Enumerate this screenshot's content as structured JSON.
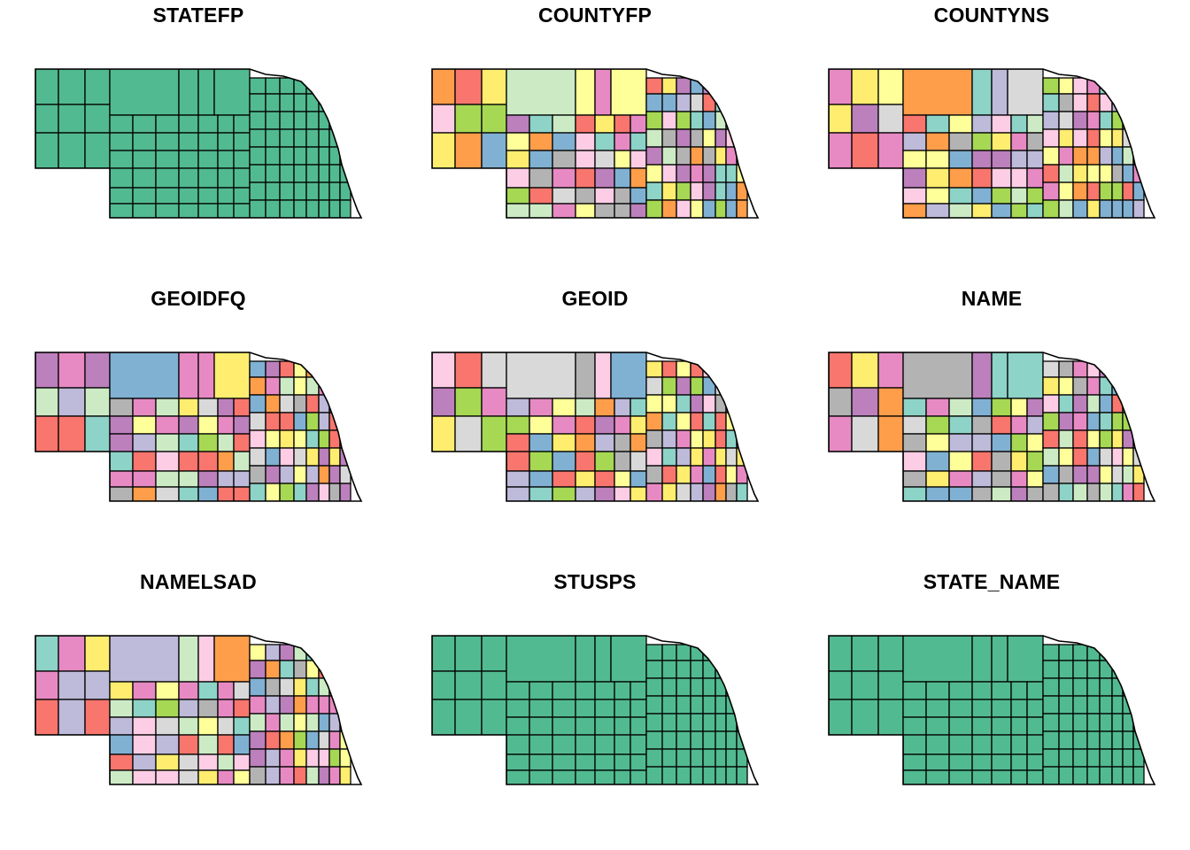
{
  "figure": {
    "panels": [
      {
        "title": "STATEFP",
        "mode": "single"
      },
      {
        "title": "COUNTYFP",
        "mode": "multi"
      },
      {
        "title": "COUNTYNS",
        "mode": "multi"
      },
      {
        "title": "GEOIDFQ",
        "mode": "multi"
      },
      {
        "title": "GEOID",
        "mode": "multi"
      },
      {
        "title": "NAME",
        "mode": "multi"
      },
      {
        "title": "NAMELSAD",
        "mode": "multi"
      },
      {
        "title": "STUSPS",
        "mode": "single"
      },
      {
        "title": "STATE_NAME",
        "mode": "single"
      }
    ],
    "colors": {
      "single_fill": "#52BA91",
      "stroke": "#000000",
      "background": "#ffffff",
      "palette": [
        "#F8766D",
        "#FF9E4A",
        "#FFFF99",
        "#A6D854",
        "#8DD3C7",
        "#E78AC3",
        "#B3B3B3",
        "#80B1D3",
        "#BC80BD",
        "#CCEBC5",
        "#FFED6F",
        "#FCCDE5",
        "#BEBADA",
        "#D9D9D9"
      ]
    }
  }
}
